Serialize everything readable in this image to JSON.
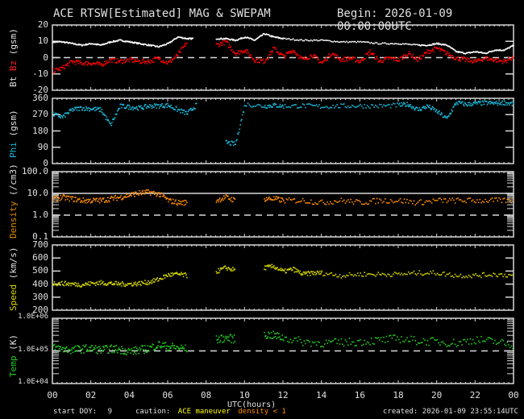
{
  "header": {
    "title": "ACE RTSW[Estimated] MAG & SWEPAM",
    "begin": "Begin: 2026-01-09 00:00:00UTC"
  },
  "footer": {
    "start_doy_label": "start DOY:",
    "start_doy_value": "9",
    "caution_label": "caution:",
    "caution_maneuver": "ACE maneuver",
    "caution_density": "density < 1",
    "created": "created: 2026-01-09 23:55:14UTC",
    "xlabel": "UTC(hours)"
  },
  "colors": {
    "background": "#000000",
    "axes": "#e0e0e0",
    "bt": "#ffffff",
    "bz": "#ff0000",
    "phi": "#1ab8d8",
    "density": "#ff8c00",
    "speed": "#d4d400",
    "temp": "#22cc22",
    "caution_maneuver": "#ffff00",
    "caution_density": "#ff8c00"
  },
  "chart_data": [
    {
      "type": "scatter",
      "panel": "mag",
      "ylabel_parts": [
        "Bt",
        "Bz",
        "(gsm)"
      ],
      "ylim": [
        -20,
        20
      ],
      "yticks": [
        "20",
        "10",
        "0",
        "-10",
        "-20"
      ],
      "reference_line": 0,
      "series": [
        {
          "name": "Bt",
          "x": [
            0,
            0.5,
            1,
            1.5,
            2,
            2.5,
            3,
            3.5,
            4,
            4.5,
            5,
            5.5,
            6,
            6.5,
            7,
            7.3,
            8.5,
            9,
            9.5,
            10,
            10.5,
            11,
            11.5,
            12,
            13,
            14,
            15,
            16,
            17,
            18,
            19,
            19.5,
            20,
            20.5,
            21,
            21.5,
            22,
            22.5,
            23,
            23.5,
            24
          ],
          "values": [
            10,
            10,
            9,
            8,
            9,
            8,
            10,
            11,
            10,
            9,
            8,
            7,
            9,
            13,
            12,
            12,
            12,
            12,
            11,
            13,
            11,
            15,
            13,
            12,
            11,
            11,
            10,
            10,
            9,
            9,
            8,
            8,
            9,
            8,
            4,
            3,
            4,
            3,
            5,
            5,
            8
          ]
        },
        {
          "name": "Bz",
          "x": [
            0,
            0.5,
            1,
            1.5,
            2,
            2.5,
            3,
            3.5,
            4,
            4.5,
            5,
            5.5,
            6,
            6.5,
            7,
            8.5,
            9,
            9.5,
            10,
            10.5,
            11,
            11.5,
            12,
            12.5,
            13,
            13.5,
            14,
            14.5,
            15,
            15.5,
            16,
            16.5,
            17,
            17.5,
            18,
            18.5,
            19,
            19.5,
            20,
            20.5,
            21,
            21.5,
            22,
            22.5,
            23,
            23.5,
            24
          ],
          "values": [
            -8,
            -6,
            -2,
            -3,
            -3,
            -4,
            -1,
            -2,
            -1,
            -2,
            -2,
            0,
            -3,
            2,
            10,
            8,
            10,
            3,
            5,
            -1,
            -2,
            6,
            1,
            5,
            -1,
            2,
            -3,
            3,
            -1,
            0,
            -2,
            4,
            -2,
            0,
            -1,
            3,
            -1,
            4,
            6,
            3,
            0,
            -1,
            -2,
            0,
            -1,
            -2,
            1
          ]
        }
      ]
    },
    {
      "type": "scatter",
      "panel": "phi",
      "ylabel_parts": [
        "Phi",
        "(gsm)"
      ],
      "ylim": [
        0,
        360
      ],
      "yticks": [
        "360",
        "270",
        "180",
        "90",
        "0"
      ],
      "series": [
        {
          "name": "Phi",
          "x": [
            0,
            0.5,
            1,
            1.5,
            2,
            2.5,
            3,
            3.5,
            4,
            4.5,
            5,
            5.5,
            6,
            6.5,
            7,
            7.5,
            9,
            9.5,
            10,
            11,
            11.5,
            12,
            13,
            14,
            15,
            16,
            17,
            18,
            18.5,
            19,
            19.5,
            20,
            20.5,
            21,
            21.5,
            22,
            22.5,
            23,
            23.5,
            24
          ],
          "values": [
            275,
            260,
            300,
            310,
            305,
            300,
            215,
            320,
            315,
            310,
            320,
            322,
            325,
            300,
            280,
            330,
            120,
            110,
            330,
            320,
            325,
            320,
            322,
            318,
            320,
            322,
            320,
            325,
            330,
            300,
            320,
            290,
            250,
            340,
            330,
            335,
            338,
            336,
            340,
            330
          ]
        }
      ]
    },
    {
      "type": "scatter",
      "panel": "density",
      "ylabel_parts": [
        "Density",
        "(/cm3)"
      ],
      "yscale": "log",
      "ylim": [
        0.1,
        100
      ],
      "yticks": [
        "100.0",
        "10.0",
        "1.0",
        "0.1"
      ],
      "reference_lines": [
        10,
        1
      ],
      "series": [
        {
          "name": "Density",
          "x": [
            0,
            0.5,
            1,
            1.5,
            2,
            2.5,
            3,
            3.5,
            4,
            4.5,
            5,
            5.5,
            6,
            6.5,
            7,
            8.5,
            9,
            9.5,
            11,
            11.5,
            12,
            13,
            14,
            15,
            16,
            17,
            18,
            19,
            20,
            21,
            22,
            23,
            24
          ],
          "values": [
            6,
            7,
            6,
            5,
            5,
            5,
            6,
            7,
            9,
            11,
            12,
            10,
            5,
            4,
            4,
            5,
            7,
            5,
            6,
            6,
            5,
            5,
            4,
            5,
            4,
            5,
            5,
            4,
            5,
            5,
            5,
            5,
            5
          ]
        }
      ]
    },
    {
      "type": "scatter",
      "panel": "speed",
      "ylabel_parts": [
        "Speed",
        "(km/s)"
      ],
      "ylim": [
        200,
        700
      ],
      "yticks": [
        "700",
        "600",
        "500",
        "400",
        "300",
        "200"
      ],
      "series": [
        {
          "name": "Speed",
          "x": [
            0,
            0.5,
            1,
            1.5,
            2,
            2.5,
            3,
            3.5,
            4,
            4.5,
            5,
            5.5,
            6,
            6.5,
            7,
            8.5,
            9,
            9.5,
            11,
            11.5,
            12,
            12.5,
            13,
            13.5,
            14,
            15,
            16,
            17,
            18,
            19,
            20,
            21,
            22,
            23,
            24
          ],
          "values": [
            410,
            410,
            405,
            400,
            410,
            415,
            410,
            405,
            405,
            410,
            420,
            440,
            475,
            480,
            470,
            500,
            530,
            510,
            530,
            540,
            500,
            520,
            480,
            490,
            490,
            470,
            480,
            480,
            480,
            490,
            490,
            470,
            470,
            480,
            470
          ]
        }
      ]
    },
    {
      "type": "scatter",
      "panel": "temp",
      "ylabel_parts": [
        "Temp",
        "(K)"
      ],
      "yscale": "log",
      "ylim": [
        10000,
        1000000
      ],
      "yticks": [
        "1.0E+06",
        "1.0E+05",
        "1.0E+04"
      ],
      "reference_line": 100000,
      "series": [
        {
          "name": "Temp",
          "x": [
            0,
            0.5,
            1,
            1.5,
            2,
            2.5,
            3,
            3.5,
            4,
            4.5,
            5,
            5.5,
            6,
            6.5,
            7,
            8.5,
            9,
            9.5,
            11,
            11.5,
            12,
            13,
            14,
            15,
            16,
            17,
            18,
            19,
            20,
            21,
            22,
            23,
            24
          ],
          "values": [
            130000,
            120000,
            110000,
            120000,
            125000,
            110000,
            120000,
            115000,
            100000,
            110000,
            125000,
            160000,
            140000,
            130000,
            120000,
            230000,
            260000,
            240000,
            330000,
            310000,
            260000,
            200000,
            180000,
            190000,
            200000,
            220000,
            250000,
            210000,
            200000,
            180000,
            230000,
            200000,
            150000
          ]
        }
      ]
    }
  ],
  "xaxis": {
    "label": "UTC(hours)",
    "xlim": [
      0,
      24
    ],
    "ticks": [
      "00",
      "02",
      "04",
      "06",
      "08",
      "10",
      "12",
      "14",
      "16",
      "18",
      "20",
      "22",
      "00"
    ]
  }
}
